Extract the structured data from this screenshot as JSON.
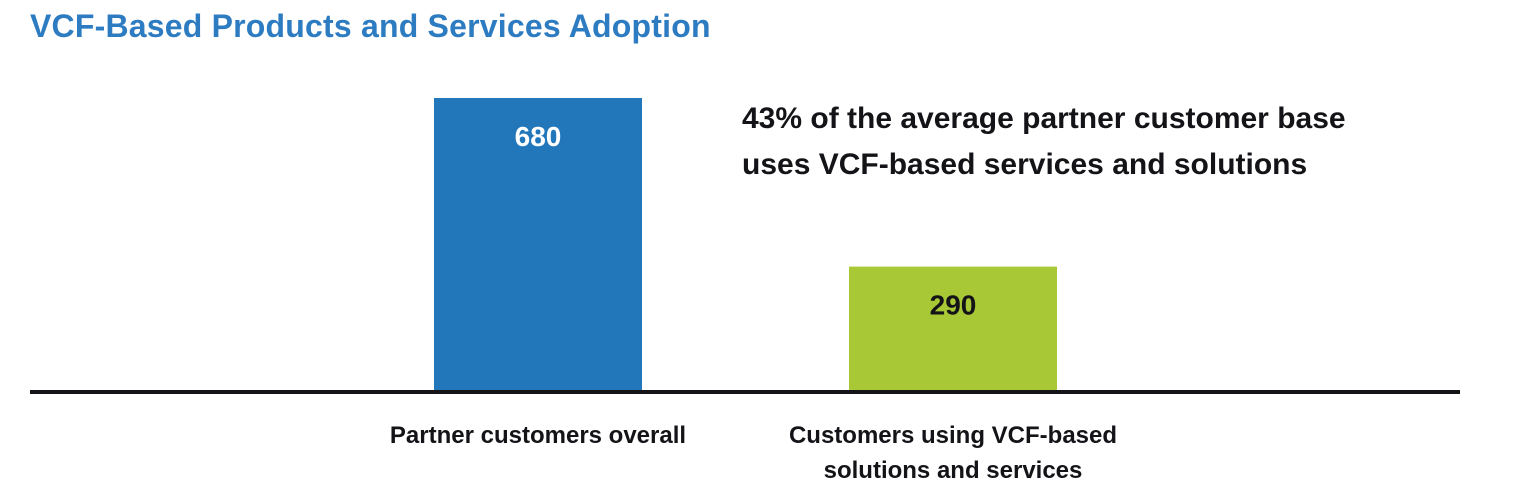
{
  "colors": {
    "title": "#2d7cc1",
    "baseline": "#141418"
  },
  "chart_data": {
    "type": "bar",
    "title": "VCF-Based Products and Services Adoption",
    "annotation": [
      "43% of the average partner customer base",
      "uses VCF-based services and solutions"
    ],
    "categories": [
      "Partner customers overall",
      "Customers using VCF-based solutions and services"
    ],
    "category_label_lines": [
      [
        "Partner customers overall"
      ],
      [
        "Customers using VCF-based",
        "solutions and services"
      ]
    ],
    "values": [
      680,
      290
    ],
    "value_labels": [
      "680",
      "290"
    ],
    "bar_colors": [
      "#2277bb",
      "#a8c935"
    ],
    "value_label_colors": [
      "#ffffff",
      "#141418"
    ],
    "ylim": [
      0,
      680
    ],
    "grid": false,
    "legend": "none"
  }
}
